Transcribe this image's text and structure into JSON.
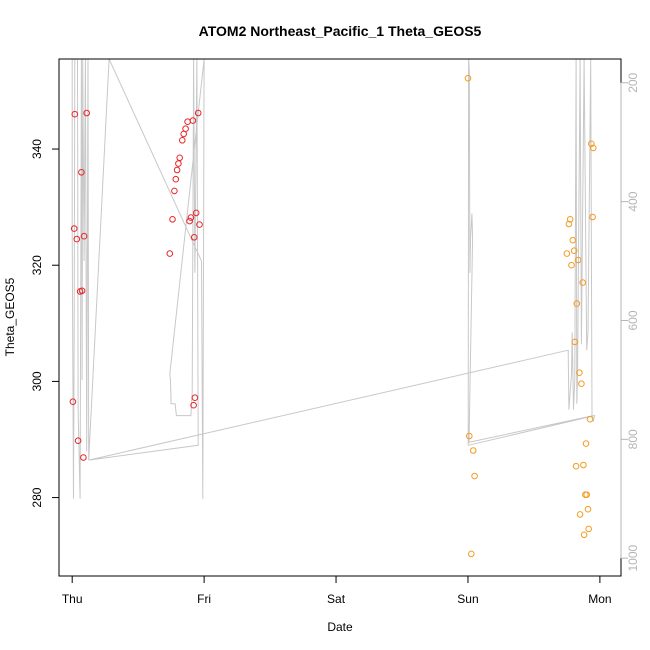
{
  "chart_data": {
    "type": "scatter",
    "title": "ATOM2 Northeast_Pacific_1 Theta_GEOS5",
    "xlabel": "Date",
    "ylabel": "Theta_GEOS5",
    "x_ticks": [
      {
        "label": "Thu",
        "value": 0
      },
      {
        "label": "Fri",
        "value": 1
      },
      {
        "label": "Sat",
        "value": 2
      },
      {
        "label": "Sun",
        "value": 3
      },
      {
        "label": "Mon",
        "value": 4
      }
    ],
    "xlim": [
      -0.1,
      4.16
    ],
    "ylim": [
      266.5,
      355.5
    ],
    "y_ticks": [
      280,
      300,
      320,
      340
    ],
    "y2_label": "",
    "y2_lim": [
      1030,
      160
    ],
    "y2_ticks": [
      200,
      400,
      600,
      800,
      1000
    ],
    "series": [
      {
        "color": "#e8262a",
        "points": [
          [
            0.005,
            296.5
          ],
          [
            0.015,
            326.3
          ],
          [
            0.02,
            346.0
          ],
          [
            0.035,
            324.5
          ],
          [
            0.045,
            289.8
          ],
          [
            0.06,
            315.5
          ],
          [
            0.07,
            336.0
          ],
          [
            0.075,
            315.6
          ],
          [
            0.085,
            286.9
          ],
          [
            0.09,
            325.0
          ],
          [
            0.11,
            346.2
          ],
          [
            0.74,
            322.0
          ],
          [
            0.76,
            327.9
          ],
          [
            0.775,
            332.8
          ],
          [
            0.785,
            334.8
          ],
          [
            0.795,
            336.4
          ],
          [
            0.805,
            337.5
          ],
          [
            0.815,
            338.5
          ],
          [
            0.835,
            341.5
          ],
          [
            0.845,
            342.6
          ],
          [
            0.86,
            343.5
          ],
          [
            0.875,
            344.7
          ],
          [
            0.89,
            327.6
          ],
          [
            0.9,
            328.2
          ],
          [
            0.915,
            344.9
          ],
          [
            0.925,
            324.8
          ],
          [
            0.94,
            329.0
          ],
          [
            0.955,
            346.2
          ],
          [
            0.965,
            327.0
          ],
          [
            0.93,
            297.2
          ],
          [
            0.92,
            295.9
          ]
        ]
      },
      {
        "color": "#f59b1f",
        "points": [
          [
            3.0,
            352.2
          ],
          [
            3.01,
            290.6
          ],
          [
            3.025,
            270.3
          ],
          [
            3.04,
            288.1
          ],
          [
            3.05,
            283.7
          ],
          [
            3.75,
            322.0
          ],
          [
            3.765,
            327.1
          ],
          [
            3.775,
            327.9
          ],
          [
            3.785,
            320.0
          ],
          [
            3.795,
            324.3
          ],
          [
            3.805,
            322.5
          ],
          [
            3.81,
            306.8
          ],
          [
            3.82,
            285.4
          ],
          [
            3.825,
            313.4
          ],
          [
            3.835,
            320.9
          ],
          [
            3.845,
            301.5
          ],
          [
            3.85,
            277.1
          ],
          [
            3.86,
            299.6
          ],
          [
            3.87,
            317.0
          ],
          [
            3.875,
            285.6
          ],
          [
            3.88,
            273.6
          ],
          [
            3.89,
            280.5
          ],
          [
            3.895,
            289.3
          ],
          [
            3.9,
            280.5
          ],
          [
            3.91,
            278.0
          ],
          [
            3.915,
            274.6
          ],
          [
            3.925,
            293.5
          ],
          [
            3.935,
            340.9
          ],
          [
            3.95,
            340.2
          ],
          [
            3.945,
            328.3
          ]
        ]
      }
    ],
    "line": {
      "color": "#c8c8c8",
      "axis": "y2",
      "points": [
        [
          0.0,
          160
        ],
        [
          0.0,
          450
        ],
        [
          0.005,
          700
        ],
        [
          0.01,
          900
        ],
        [
          0.015,
          600
        ],
        [
          0.02,
          160
        ],
        [
          0.04,
          160
        ],
        [
          0.045,
          750
        ],
        [
          0.06,
          900
        ],
        [
          0.07,
          160
        ],
        [
          0.075,
          700
        ],
        [
          0.08,
          160
        ],
        [
          0.09,
          500
        ],
        [
          0.1,
          160
        ],
        [
          0.11,
          820
        ],
        [
          0.12,
          160
        ],
        [
          0.125,
          835
        ],
        [
          0.28,
          160
        ],
        [
          0.98,
          500
        ],
        [
          0.99,
          900
        ],
        [
          1.0,
          160
        ],
        [
          0.74,
          690
        ],
        [
          0.745,
          700
        ],
        [
          0.75,
          740
        ],
        [
          0.78,
          740
        ],
        [
          0.79,
          760
        ],
        [
          0.9,
          760
        ],
        [
          0.91,
          720
        ],
        [
          0.92,
          160
        ],
        [
          0.93,
          520
        ],
        [
          0.945,
          160
        ],
        [
          0.955,
          810
        ],
        [
          0.125,
          835
        ],
        [
          3.76,
          650
        ],
        [
          3.765,
          750
        ],
        [
          3.775,
          720
        ],
        [
          3.785,
          690
        ],
        [
          3.79,
          620
        ],
        [
          3.8,
          750
        ],
        [
          3.81,
          700
        ],
        [
          3.82,
          160
        ],
        [
          3.825,
          740
        ],
        [
          3.83,
          700
        ],
        [
          3.835,
          580
        ],
        [
          3.85,
          160
        ],
        [
          3.86,
          640
        ],
        [
          3.88,
          160
        ],
        [
          3.9,
          650
        ],
        [
          3.91,
          620
        ],
        [
          3.93,
          160
        ],
        [
          3.94,
          760
        ],
        [
          3.95,
          770
        ],
        [
          3.96,
          760
        ],
        [
          3.002,
          810
        ],
        [
          3.005,
          160
        ],
        [
          3.01,
          180
        ],
        [
          3.015,
          520
        ],
        [
          3.02,
          460
        ],
        [
          3.03,
          420
        ],
        [
          3.035,
          460
        ],
        [
          3.008,
          805
        ],
        [
          3.95,
          760
        ]
      ]
    }
  }
}
